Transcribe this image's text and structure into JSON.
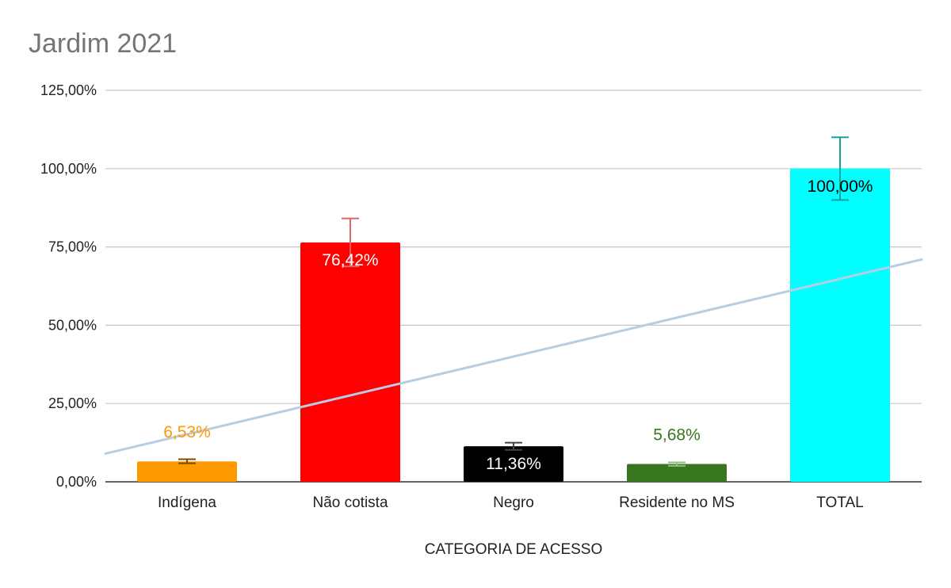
{
  "chart_data": {
    "type": "bar",
    "title": "Jardim 2021",
    "xlabel": "CATEGORIA DE ACESSO",
    "ylabel": "",
    "ylim": [
      0,
      125
    ],
    "yticks": [
      "0,00%",
      "25,00%",
      "50,00%",
      "75,00%",
      "100,00%",
      "125,00%"
    ],
    "grid": true,
    "categories": [
      "Indígena",
      "Não cotista",
      "Negro",
      "Residente no MS",
      "TOTAL"
    ],
    "values": [
      6.53,
      76.42,
      11.36,
      5.68,
      100.0
    ],
    "value_labels": [
      "6,53%",
      "76,42%",
      "11,36%",
      "5,68%",
      "100,00%"
    ],
    "colors": [
      "#ff9900",
      "#ff0000",
      "#000000",
      "#38761d",
      "#00ffff"
    ],
    "label_colors": [
      "#ff9900",
      "#ffffff",
      "#ffffff",
      "#38761d",
      "#000000"
    ],
    "label_positions": [
      "above",
      "inside",
      "inside",
      "above",
      "inside"
    ],
    "error_bars": [
      {
        "low": 5.9,
        "high": 7.2,
        "color": "#7f4c00"
      },
      {
        "low": 68.8,
        "high": 84.1,
        "color": "#e06666"
      },
      {
        "low": 10.2,
        "high": 12.5,
        "color": "#444444"
      },
      {
        "low": 5.1,
        "high": 6.2,
        "color": "#8fbf7f"
      },
      {
        "low": 90.0,
        "high": 110.0,
        "color": "#1a9e9e"
      }
    ],
    "trendline": {
      "type": "linear",
      "start_value": 9.0,
      "end_value": 71.0,
      "color": "#b7cde3"
    }
  }
}
